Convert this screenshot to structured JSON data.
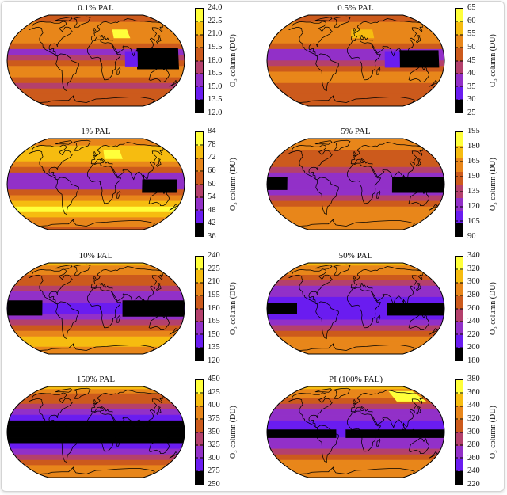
{
  "maps": {
    "colorbar_label": "O₃ column (DU)",
    "palette": [
      "#000000",
      "#6a1cf0",
      "#9230c8",
      "#b4406c",
      "#cc5a1c",
      "#e8861a",
      "#f6bc10",
      "#ffff3a"
    ],
    "panels": [
      {
        "title": "0.1% PAL",
        "ticks": [
          "24.0",
          "22.5",
          "21.0",
          "19.5",
          "18.0",
          "16.5",
          "15.0",
          "13.5",
          "12.0"
        ],
        "zonal_levels": [
          4,
          4,
          5,
          5,
          5,
          5,
          4,
          2,
          3,
          4,
          5,
          5,
          4,
          3,
          4,
          4,
          4,
          4
        ],
        "patches": [
          {
            "lon": [
              85,
              170
            ],
            "lat": [
              -15,
              22
            ],
            "level": 0
          },
          {
            "lon": [
              60,
              85
            ],
            "lat": [
              -10,
              15
            ],
            "level": 1
          },
          {
            "lon": [
              40,
              75
            ],
            "lat": [
              40,
              55
            ],
            "level": 7
          }
        ]
      },
      {
        "title": "0.5% PAL",
        "ticks": [
          "65",
          "60",
          "55",
          "50",
          "45",
          "40",
          "35",
          "30",
          "25"
        ],
        "zonal_levels": [
          4,
          4,
          5,
          5,
          5,
          5,
          4,
          2,
          2,
          3,
          4,
          5,
          5,
          4,
          4,
          4,
          4,
          4
        ],
        "patches": [
          {
            "lon": [
              90,
              170
            ],
            "lat": [
              -12,
              18
            ],
            "level": 0
          },
          {
            "lon": [
              60,
              90
            ],
            "lat": [
              -12,
              15
            ],
            "level": 1
          },
          {
            "lon": [
              -10,
              40
            ],
            "lat": [
              40,
              55
            ],
            "level": 6
          }
        ]
      },
      {
        "title": "1% PAL",
        "ticks": [
          "84",
          "78",
          "72",
          "66",
          "60",
          "54",
          "48",
          "42",
          "36"
        ],
        "zonal_levels": [
          5,
          5,
          6,
          6,
          6,
          5,
          4,
          2,
          2,
          2,
          4,
          5,
          6,
          7,
          6,
          5,
          5,
          4
        ],
        "patches": [
          {
            "lon": [
              95,
              165
            ],
            "lat": [
              -15,
              8
            ],
            "level": 0
          },
          {
            "lon": [
              20,
              60
            ],
            "lat": [
              45,
              60
            ],
            "level": 7
          }
        ]
      },
      {
        "title": "5% PAL",
        "ticks": [
          "195",
          "180",
          "165",
          "150",
          "135",
          "120",
          "105",
          "90"
        ],
        "zonal_levels": [
          5,
          5,
          5,
          4,
          4,
          4,
          3,
          2,
          2,
          2,
          2,
          3,
          4,
          5,
          5,
          5,
          5,
          5
        ],
        "patches": [
          {
            "lon": [
              -180,
              -140
            ],
            "lat": [
              -10,
              12
            ],
            "level": 0
          },
          {
            "lon": [
              75,
              180
            ],
            "lat": [
              -15,
              12
            ],
            "level": 0
          }
        ]
      },
      {
        "title": "10% PAL",
        "ticks": [
          "240",
          "225",
          "210",
          "195",
          "180",
          "165",
          "150",
          "135",
          "120"
        ],
        "zonal_levels": [
          6,
          5,
          5,
          4,
          4,
          3,
          2,
          2,
          1,
          1,
          2,
          3,
          4,
          5,
          6,
          6,
          5,
          5
        ],
        "patches": [
          {
            "lon": [
              -180,
              -110
            ],
            "lat": [
              -12,
              14
            ],
            "level": 0
          },
          {
            "lon": [
              55,
              180
            ],
            "lat": [
              -14,
              14
            ],
            "level": 0
          }
        ]
      },
      {
        "title": "50% PAL",
        "ticks": [
          "340",
          "320",
          "300",
          "280",
          "260",
          "240",
          "220",
          "200",
          "180"
        ],
        "zonal_levels": [
          6,
          5,
          5,
          4,
          3,
          2,
          2,
          1,
          1,
          1,
          1,
          2,
          3,
          4,
          5,
          5,
          5,
          5
        ],
        "patches": [
          {
            "lon": [
              -180,
              -120
            ],
            "lat": [
              -10,
              10
            ],
            "level": 0
          },
          {
            "lon": [
              65,
              180
            ],
            "lat": [
              -12,
              10
            ],
            "level": 0
          }
        ]
      },
      {
        "title": "150% PAL",
        "ticks": [
          "450",
          "425",
          "400",
          "375",
          "350",
          "325",
          "300",
          "275",
          "250"
        ],
        "zonal_levels": [
          6,
          5,
          4,
          4,
          3,
          2,
          1,
          0,
          0,
          0,
          0,
          1,
          2,
          3,
          4,
          5,
          5,
          5
        ],
        "patches": []
      },
      {
        "title": "PI (100% PAL)",
        "ticks": [
          "380",
          "360",
          "340",
          "320",
          "300",
          "280",
          "260",
          "240",
          "220"
        ],
        "zonal_levels": [
          6,
          5,
          5,
          4,
          3,
          2,
          2,
          1,
          1,
          1,
          2,
          2,
          3,
          4,
          5,
          5,
          5,
          5
        ],
        "patches": [
          {
            "lon": [
              -180,
              -40
            ],
            "lat": [
              -10,
              4
            ],
            "level": 0
          },
          {
            "lon": [
              -20,
              180
            ],
            "lat": [
              -10,
              4
            ],
            "level": 0
          },
          {
            "lon": [
              100,
              170
            ],
            "lat": [
              55,
              75
            ],
            "level": 7
          }
        ]
      }
    ]
  }
}
